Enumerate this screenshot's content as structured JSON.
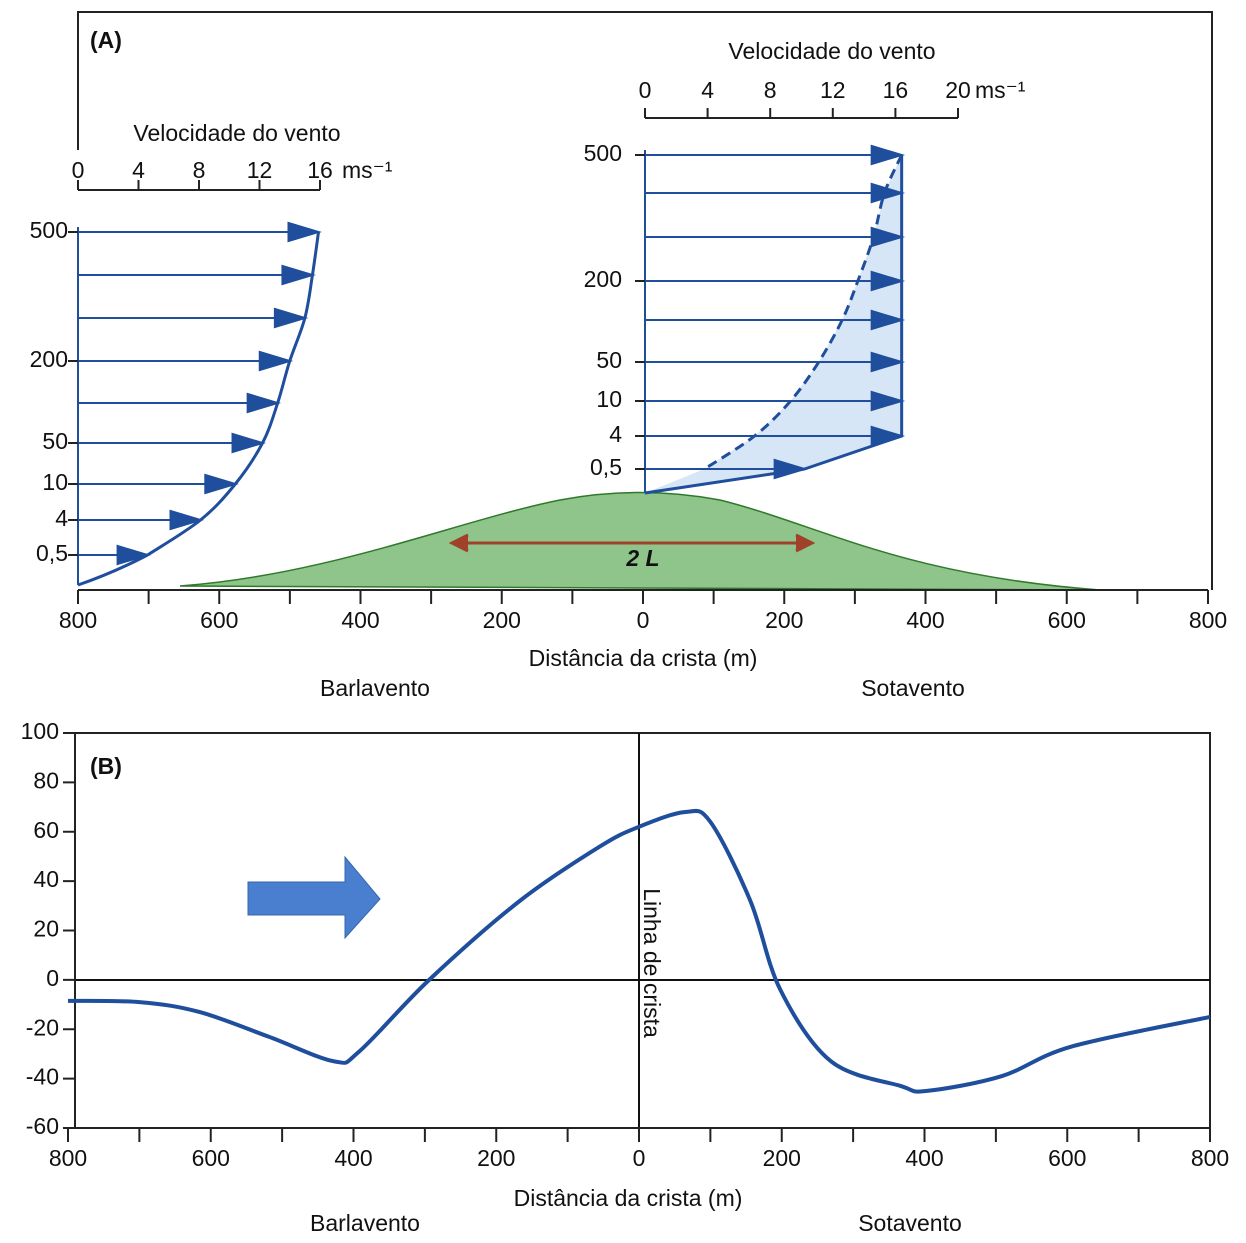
{
  "chart_data": [
    {
      "type": "wind-profile",
      "panel_label": "(A)",
      "xlabel": "Distância da crista (m)",
      "side_labels": [
        "Barlavento",
        "Sotavento"
      ],
      "xlim": [
        -800,
        800
      ],
      "xticks": [
        {
          "value": -800,
          "label": "800"
        },
        {
          "value": -600,
          "label": "600"
        },
        {
          "value": -400,
          "label": "400"
        },
        {
          "value": -200,
          "label": "200"
        },
        0,
        200,
        400,
        600,
        800
      ],
      "annotation": "2 L",
      "profiles": [
        {
          "title": "Velocidade do vento",
          "unit": "ms⁻¹",
          "speed_lim": [
            0,
            16
          ],
          "speed_ticks": [
            0,
            4,
            8,
            12,
            16
          ],
          "height_labels": [
            "500",
            null,
            null,
            "200",
            null,
            "50",
            "10",
            "4",
            "0,5"
          ],
          "values": [
            15.9,
            15.5,
            15.0,
            14.0,
            13.2,
            12.2,
            10.4,
            8.1,
            4.6
          ]
        },
        {
          "title": "Velocidade do vento",
          "unit": "ms⁻¹",
          "speed_lim": [
            0,
            20
          ],
          "speed_ticks": [
            0,
            4,
            8,
            12,
            16,
            20
          ],
          "height_labels": [
            "500",
            null,
            null,
            "200",
            null,
            "50",
            "10",
            "4",
            "0,5"
          ],
          "values": [
            16.4,
            16.4,
            16.4,
            16.4,
            16.4,
            16.4,
            16.4,
            16.4,
            10.2
          ],
          "reference_values": [
            16.4,
            15.3,
            14.6,
            13.6,
            12.6,
            11.1,
            9.3,
            7.0,
            3.8
          ]
        }
      ]
    },
    {
      "type": "line",
      "panel_label": "(B)",
      "xlabel": "Distância da crista (m)",
      "side_labels": [
        "Barlavento",
        "Sotavento"
      ],
      "annotation": "Linha de crista",
      "color": "#1f4e9c",
      "xlim": [
        -800,
        800
      ],
      "ylim": [
        -60,
        100
      ],
      "xticks": [
        {
          "value": -800,
          "label": "800"
        },
        {
          "value": -600,
          "label": "600"
        },
        {
          "value": -400,
          "label": "400"
        },
        {
          "value": -200,
          "label": "200"
        },
        0,
        200,
        400,
        600,
        800
      ],
      "yticks": [
        -60,
        -40,
        -20,
        0,
        20,
        40,
        60,
        80,
        100
      ],
      "x": [
        -800,
        -700,
        -616,
        -519,
        -427,
        -392,
        -294,
        -167,
        -55,
        0,
        65,
        100,
        156,
        198,
        269,
        367,
        402,
        508,
        606,
        800
      ],
      "values": [
        -8.5,
        -9,
        -13,
        -23,
        -33,
        -29,
        0,
        32,
        54,
        62,
        68,
        64,
        32,
        -4,
        -33,
        -43,
        -45,
        -39,
        -27,
        -15
      ]
    }
  ]
}
